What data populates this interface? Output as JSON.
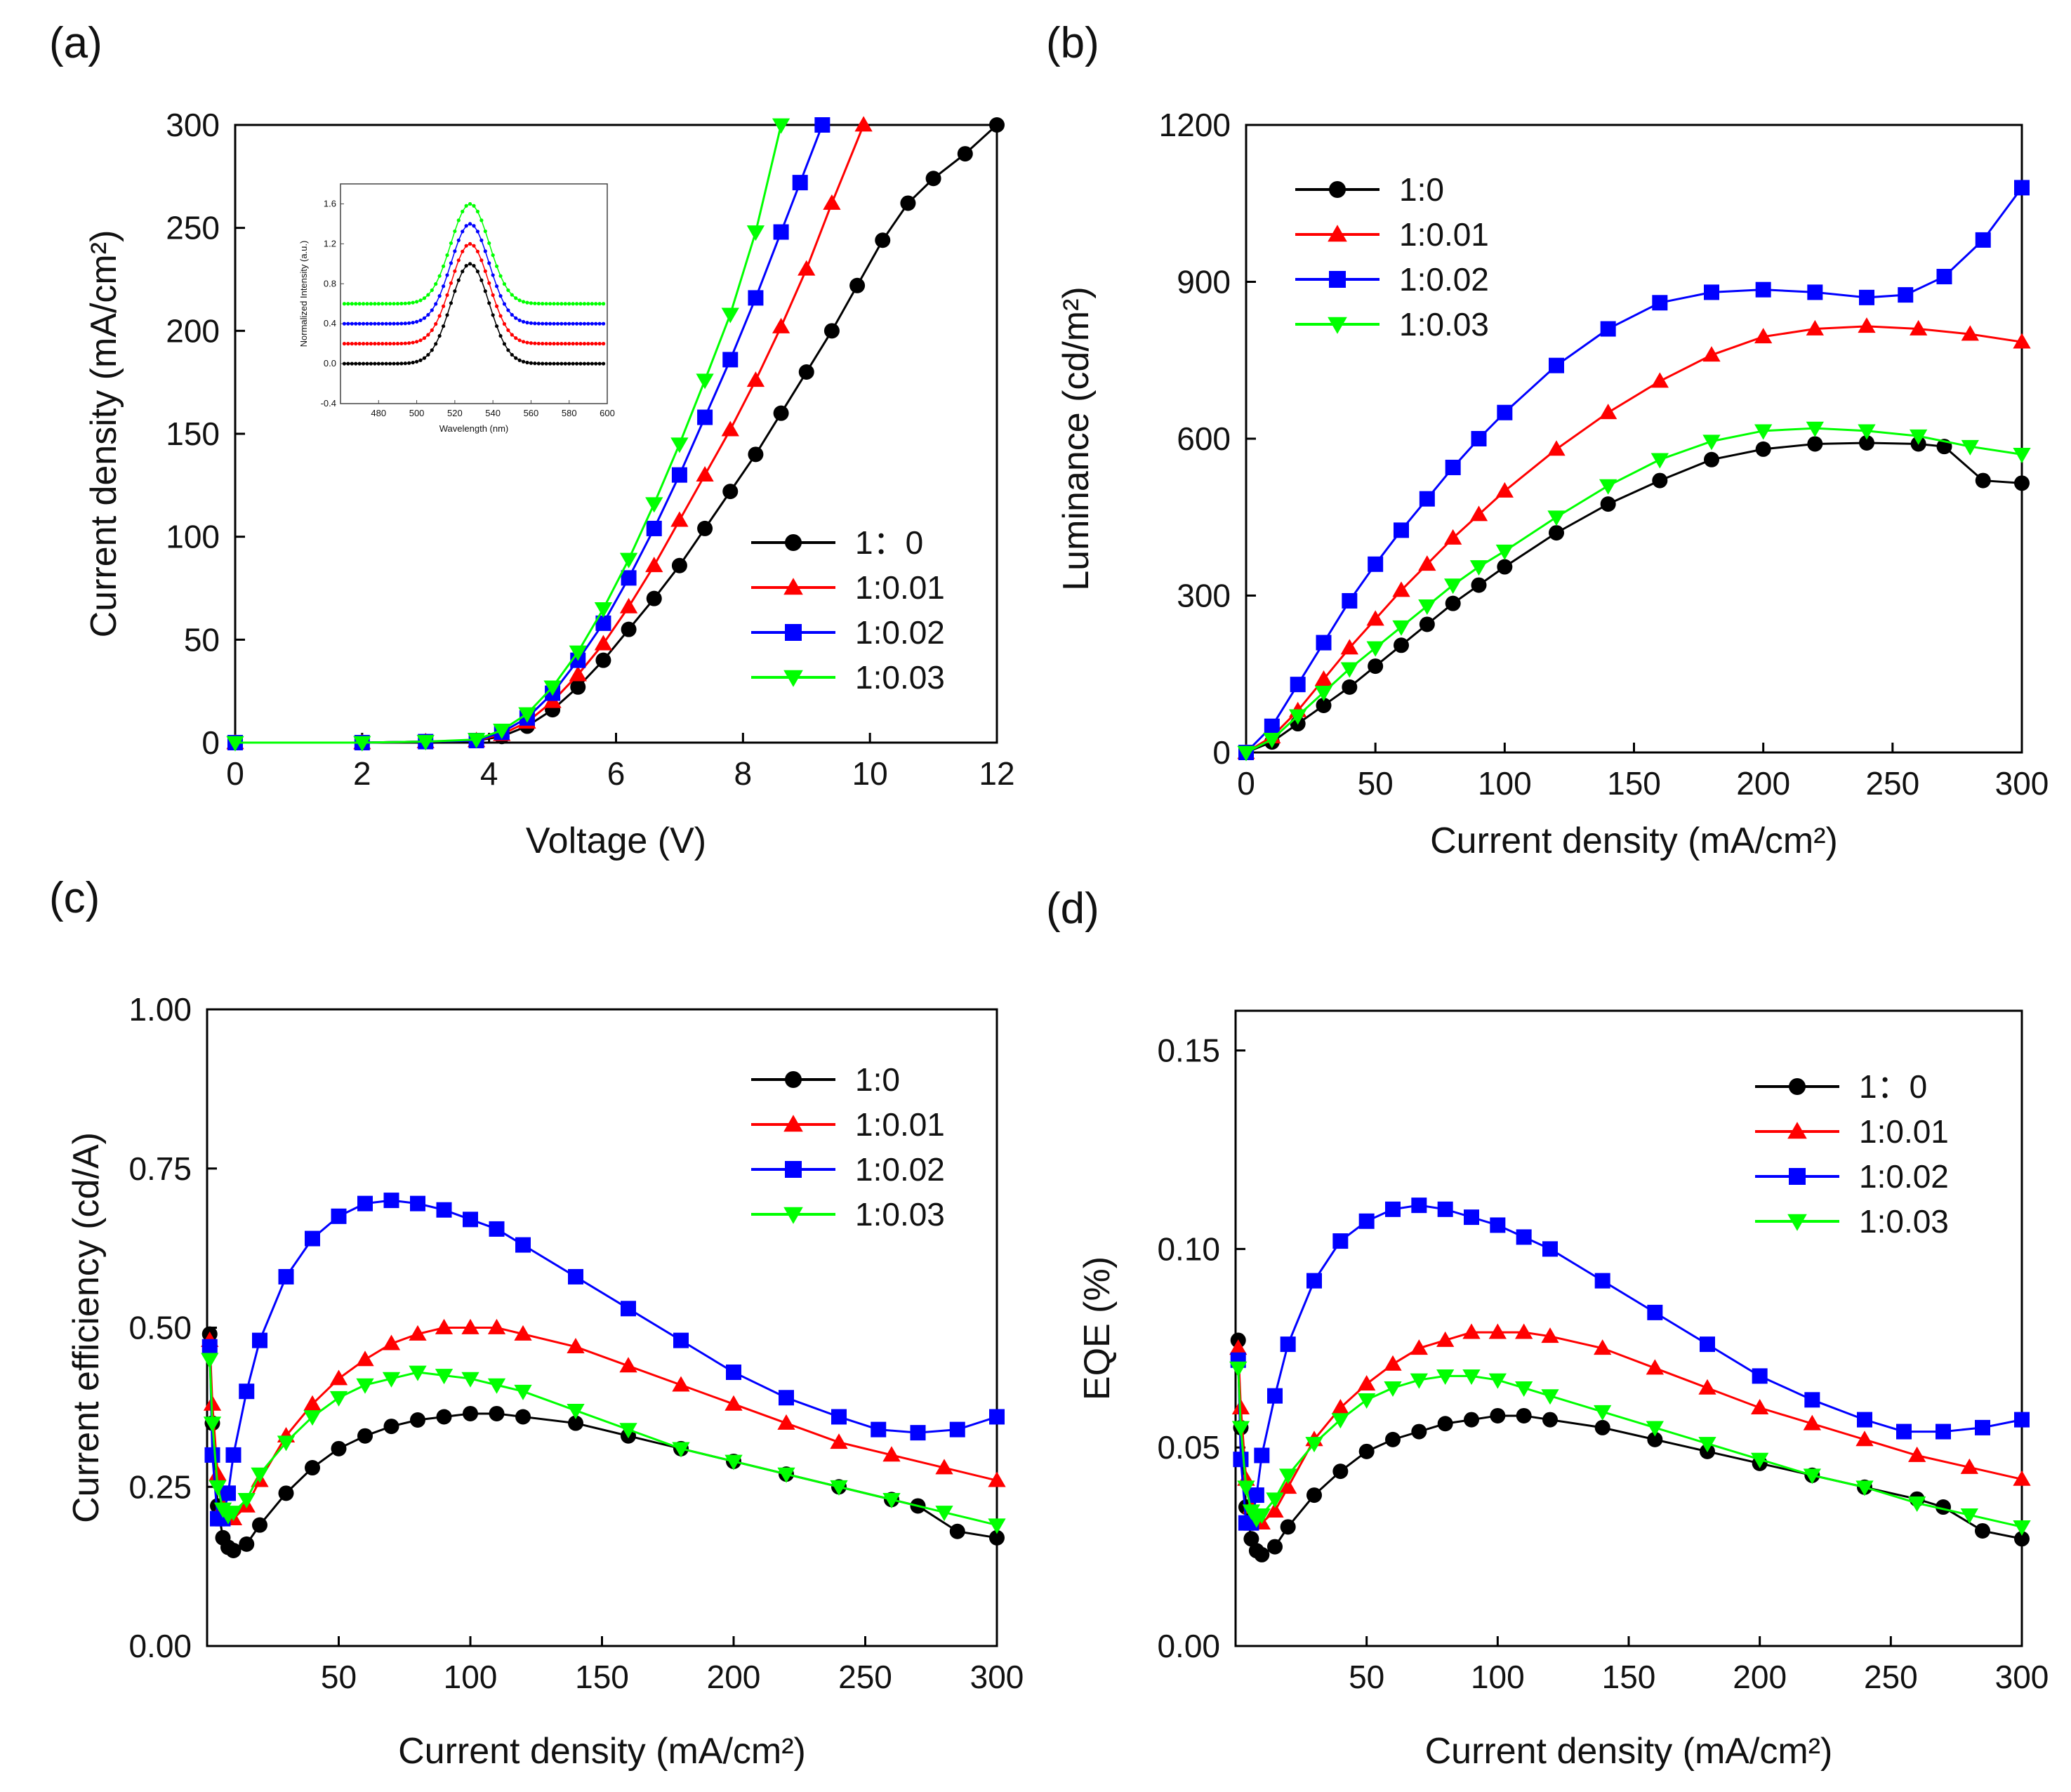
{
  "colors": {
    "1:0": "#000000",
    "1:0.01": "#ff0000",
    "1:0.02": "#0000ff",
    "1:0.03": "#00ff00"
  },
  "chart_data": [
    {
      "panel": "(a)",
      "type": "line",
      "xlabel": "Voltage (V)",
      "ylabel": "Current density (mA/cm²)",
      "xlim": [
        0,
        12
      ],
      "ylim": [
        0,
        300
      ],
      "xticks": [
        0,
        2,
        4,
        6,
        8,
        10,
        12
      ],
      "yticks": [
        0,
        50,
        100,
        150,
        200,
        250,
        300
      ],
      "legend": {
        "position": "center-right",
        "labels": [
          "1：0",
          "1:0.01",
          "1:0.02",
          "1:0.03"
        ]
      },
      "series": [
        {
          "name": "1：0",
          "color": "#000000",
          "marker": "circle",
          "x": [
            0,
            2,
            3,
            3.8,
            4.2,
            4.6,
            5.0,
            5.4,
            5.8,
            6.2,
            6.6,
            7.0,
            7.4,
            7.8,
            8.2,
            8.6,
            9.0,
            9.4,
            9.8,
            10.2,
            10.6,
            11.0,
            11.5,
            12.0
          ],
          "y": [
            0,
            0,
            0.5,
            1,
            3,
            8,
            16,
            27,
            40,
            55,
            70,
            86,
            104,
            122,
            140,
            160,
            180,
            200,
            222,
            244,
            262,
            274,
            286,
            300
          ]
        },
        {
          "name": "1:0.01",
          "color": "#ff0000",
          "marker": "triangle-up",
          "x": [
            0,
            2,
            3,
            3.8,
            4.2,
            4.6,
            5.0,
            5.4,
            5.8,
            6.2,
            6.6,
            7.0,
            7.4,
            7.8,
            8.2,
            8.6,
            9.0,
            9.4,
            9.9
          ],
          "y": [
            0,
            0,
            0.5,
            1,
            4,
            10,
            20,
            33,
            48,
            66,
            86,
            108,
            130,
            152,
            176,
            202,
            230,
            262,
            300
          ]
        },
        {
          "name": "1:0.02",
          "color": "#0000ff",
          "marker": "square",
          "x": [
            0,
            2,
            3,
            3.8,
            4.2,
            4.6,
            5.0,
            5.4,
            5.8,
            6.2,
            6.6,
            7.0,
            7.4,
            7.8,
            8.2,
            8.6,
            8.9,
            9.25
          ],
          "y": [
            0,
            0,
            0.5,
            1,
            5,
            12,
            24,
            40,
            58,
            80,
            104,
            130,
            158,
            186,
            216,
            248,
            272,
            300
          ]
        },
        {
          "name": "1:0.03",
          "color": "#00ff00",
          "marker": "triangle-down",
          "x": [
            0,
            2,
            3,
            3.8,
            4.2,
            4.6,
            5.0,
            5.4,
            5.8,
            6.2,
            6.6,
            7.0,
            7.4,
            7.8,
            8.2,
            8.6
          ],
          "y": [
            0,
            0,
            0.5,
            1.5,
            6,
            14,
            27,
            44,
            65,
            89,
            116,
            145,
            176,
            208,
            248,
            300
          ]
        }
      ],
      "inset": {
        "xlabel": "Wavelength (nm)",
        "ylabel": "Normalized Intensity (a.u.)",
        "xlim": [
          460,
          600
        ],
        "ylim": [
          -0.4,
          1.8
        ],
        "xticks": [
          480,
          500,
          520,
          540,
          560,
          580,
          600
        ],
        "yticks": [
          -0.4,
          0,
          0.4,
          0.8,
          1.2,
          1.6
        ],
        "ytick_labels": [
          "-0.4",
          "0.0",
          "0.4",
          "0.8",
          "1.2",
          "1.6"
        ],
        "series": [
          {
            "name": "1:0",
            "color": "#000000",
            "baseline": 0.0,
            "peak": 1.0,
            "center": 528,
            "width": 10
          },
          {
            "name": "1:0.01",
            "color": "#ff0000",
            "baseline": 0.2,
            "peak": 1.2,
            "center": 528,
            "width": 10
          },
          {
            "name": "1:0.02",
            "color": "#0000ff",
            "baseline": 0.4,
            "peak": 1.4,
            "center": 528,
            "width": 10
          },
          {
            "name": "1:0.03",
            "color": "#00ff00",
            "baseline": 0.6,
            "peak": 1.6,
            "center": 528,
            "width": 10
          }
        ]
      }
    },
    {
      "panel": "(b)",
      "type": "line",
      "xlabel": "Current density (mA/cm²)",
      "ylabel": "Luminance (cd/m²)",
      "xlim": [
        0,
        300
      ],
      "ylim": [
        0,
        1200
      ],
      "xticks": [
        0,
        50,
        100,
        150,
        200,
        250,
        300
      ],
      "yticks": [
        0,
        300,
        600,
        900,
        1200
      ],
      "legend": {
        "position": "top-left",
        "labels": [
          "1:0",
          "1:0.01",
          "1:0.02",
          "1:0.03"
        ]
      },
      "series": [
        {
          "name": "1:0",
          "color": "#000000",
          "marker": "circle",
          "x": [
            0,
            10,
            20,
            30,
            40,
            50,
            60,
            70,
            80,
            90,
            100,
            120,
            140,
            160,
            180,
            200,
            220,
            240,
            260,
            270,
            285,
            300
          ],
          "y": [
            0,
            20,
            55,
            90,
            125,
            165,
            205,
            245,
            285,
            320,
            355,
            420,
            475,
            520,
            560,
            580,
            590,
            592,
            590,
            585,
            520,
            515
          ]
        },
        {
          "name": "1:0.01",
          "color": "#ff0000",
          "marker": "triangle-up",
          "x": [
            0,
            10,
            20,
            30,
            40,
            50,
            60,
            70,
            80,
            90,
            100,
            120,
            140,
            160,
            180,
            200,
            220,
            240,
            260,
            280,
            300
          ],
          "y": [
            0,
            30,
            80,
            140,
            200,
            255,
            310,
            360,
            410,
            455,
            500,
            580,
            650,
            710,
            760,
            795,
            810,
            815,
            810,
            800,
            785
          ]
        },
        {
          "name": "1:0.02",
          "color": "#0000ff",
          "marker": "square",
          "x": [
            0,
            10,
            20,
            30,
            40,
            50,
            60,
            70,
            80,
            90,
            100,
            120,
            140,
            160,
            180,
            200,
            220,
            240,
            255,
            270,
            285,
            300
          ],
          "y": [
            0,
            50,
            130,
            210,
            290,
            360,
            425,
            485,
            545,
            600,
            650,
            740,
            810,
            860,
            880,
            885,
            880,
            870,
            875,
            910,
            980,
            1080
          ]
        },
        {
          "name": "1:0.03",
          "color": "#00ff00",
          "marker": "triangle-down",
          "x": [
            0,
            10,
            20,
            30,
            40,
            50,
            60,
            70,
            80,
            90,
            100,
            120,
            140,
            160,
            180,
            200,
            220,
            240,
            260,
            280,
            300
          ],
          "y": [
            0,
            25,
            70,
            115,
            160,
            200,
            240,
            280,
            320,
            355,
            385,
            450,
            510,
            560,
            595,
            615,
            620,
            615,
            605,
            585,
            570
          ]
        }
      ]
    },
    {
      "panel": "(c)",
      "type": "line",
      "xlabel": "Current density (mA/cm²)",
      "ylabel": "Current efficiency (cd/A)",
      "xlim": [
        0,
        300
      ],
      "ylim": [
        0,
        1.0
      ],
      "xticks": [
        50,
        100,
        150,
        200,
        250,
        300
      ],
      "yticks": [
        0,
        0.25,
        0.5,
        0.75,
        1.0
      ],
      "ytick_labels": [
        "0.00",
        "0.25",
        "0.50",
        "0.75",
        "1.00"
      ],
      "legend": {
        "position": "top-right",
        "labels": [
          "1:0",
          "1:0.01",
          "1:0.02",
          "1:0.03"
        ]
      },
      "series": [
        {
          "name": "1:0",
          "color": "#000000",
          "marker": "circle",
          "x": [
            1,
            2,
            4,
            6,
            8,
            10,
            15,
            20,
            30,
            40,
            50,
            60,
            70,
            80,
            90,
            100,
            110,
            120,
            140,
            160,
            180,
            200,
            220,
            240,
            260,
            270,
            285,
            300
          ],
          "y": [
            0.49,
            0.35,
            0.22,
            0.17,
            0.155,
            0.15,
            0.16,
            0.19,
            0.24,
            0.28,
            0.31,
            0.33,
            0.345,
            0.355,
            0.36,
            0.365,
            0.365,
            0.36,
            0.35,
            0.33,
            0.31,
            0.29,
            0.27,
            0.25,
            0.23,
            0.22,
            0.18,
            0.17
          ]
        },
        {
          "name": "1:0.01",
          "color": "#ff0000",
          "marker": "triangle-up",
          "x": [
            1,
            2,
            4,
            6,
            8,
            10,
            15,
            20,
            30,
            40,
            50,
            60,
            70,
            80,
            90,
            100,
            110,
            120,
            140,
            160,
            180,
            200,
            220,
            240,
            260,
            280,
            300
          ],
          "y": [
            0.48,
            0.38,
            0.27,
            0.22,
            0.205,
            0.2,
            0.22,
            0.26,
            0.33,
            0.38,
            0.42,
            0.45,
            0.475,
            0.49,
            0.5,
            0.5,
            0.5,
            0.49,
            0.47,
            0.44,
            0.41,
            0.38,
            0.35,
            0.32,
            0.3,
            0.28,
            0.26
          ]
        },
        {
          "name": "1:0.02",
          "color": "#0000ff",
          "marker": "square",
          "x": [
            1,
            2,
            4,
            6,
            8,
            10,
            15,
            20,
            30,
            40,
            50,
            60,
            70,
            80,
            90,
            100,
            110,
            120,
            140,
            160,
            180,
            200,
            220,
            240,
            255,
            270,
            285,
            300
          ],
          "y": [
            0.47,
            0.3,
            0.2,
            0.2,
            0.24,
            0.3,
            0.4,
            0.48,
            0.58,
            0.64,
            0.675,
            0.695,
            0.7,
            0.695,
            0.685,
            0.67,
            0.655,
            0.63,
            0.58,
            0.53,
            0.48,
            0.43,
            0.39,
            0.36,
            0.34,
            0.335,
            0.34,
            0.36
          ]
        },
        {
          "name": "1:0.03",
          "color": "#00ff00",
          "marker": "triangle-down",
          "x": [
            1,
            2,
            4,
            6,
            8,
            10,
            15,
            20,
            30,
            40,
            50,
            60,
            70,
            80,
            90,
            100,
            110,
            120,
            140,
            160,
            180,
            200,
            220,
            240,
            260,
            280,
            300
          ],
          "y": [
            0.45,
            0.35,
            0.25,
            0.215,
            0.205,
            0.21,
            0.23,
            0.27,
            0.32,
            0.36,
            0.39,
            0.41,
            0.42,
            0.43,
            0.425,
            0.42,
            0.41,
            0.4,
            0.37,
            0.34,
            0.31,
            0.29,
            0.27,
            0.25,
            0.23,
            0.21,
            0.19
          ]
        }
      ]
    },
    {
      "panel": "(d)",
      "type": "line",
      "xlabel": "Current density (mA/cm²)",
      "ylabel": "EQE (%)",
      "xlim": [
        0,
        300
      ],
      "ylim": [
        0,
        0.16
      ],
      "xticks": [
        50,
        100,
        150,
        200,
        250,
        300
      ],
      "yticks": [
        0,
        0.05,
        0.1,
        0.15
      ],
      "ytick_labels": [
        "0.00",
        "0.05",
        "0.10",
        "0.15"
      ],
      "legend": {
        "position": "top-right",
        "labels": [
          "1：0",
          "1:0.01",
          "1:0.02",
          "1:0.03"
        ]
      },
      "series": [
        {
          "name": "1：0",
          "color": "#000000",
          "marker": "circle",
          "x": [
            1,
            2,
            4,
            6,
            8,
            10,
            15,
            20,
            30,
            40,
            50,
            60,
            70,
            80,
            90,
            100,
            110,
            120,
            140,
            160,
            180,
            200,
            220,
            240,
            260,
            270,
            285,
            300
          ],
          "y": [
            0.077,
            0.055,
            0.035,
            0.027,
            0.024,
            0.023,
            0.025,
            0.03,
            0.038,
            0.044,
            0.049,
            0.052,
            0.054,
            0.056,
            0.057,
            0.058,
            0.058,
            0.057,
            0.055,
            0.052,
            0.049,
            0.046,
            0.043,
            0.04,
            0.037,
            0.035,
            0.029,
            0.027
          ]
        },
        {
          "name": "1:0.01",
          "color": "#ff0000",
          "marker": "triangle-up",
          "x": [
            1,
            2,
            4,
            6,
            8,
            10,
            15,
            20,
            30,
            40,
            50,
            60,
            70,
            80,
            90,
            100,
            110,
            120,
            140,
            160,
            180,
            200,
            220,
            240,
            260,
            280,
            300
          ],
          "y": [
            0.075,
            0.06,
            0.042,
            0.035,
            0.032,
            0.031,
            0.034,
            0.04,
            0.052,
            0.06,
            0.066,
            0.071,
            0.075,
            0.077,
            0.079,
            0.079,
            0.079,
            0.078,
            0.075,
            0.07,
            0.065,
            0.06,
            0.056,
            0.052,
            0.048,
            0.045,
            0.042
          ]
        },
        {
          "name": "1:0.02",
          "color": "#0000ff",
          "marker": "square",
          "x": [
            1,
            2,
            4,
            6,
            8,
            10,
            15,
            20,
            30,
            40,
            50,
            60,
            70,
            80,
            90,
            100,
            110,
            120,
            140,
            160,
            180,
            200,
            220,
            240,
            255,
            270,
            285,
            300
          ],
          "y": [
            0.072,
            0.047,
            0.031,
            0.031,
            0.038,
            0.048,
            0.063,
            0.076,
            0.092,
            0.102,
            0.107,
            0.11,
            0.111,
            0.11,
            0.108,
            0.106,
            0.103,
            0.1,
            0.092,
            0.084,
            0.076,
            0.068,
            0.062,
            0.057,
            0.054,
            0.054,
            0.055,
            0.057
          ]
        },
        {
          "name": "1:0.03",
          "color": "#00ff00",
          "marker": "triangle-down",
          "x": [
            1,
            2,
            4,
            6,
            8,
            10,
            15,
            20,
            30,
            40,
            50,
            60,
            70,
            80,
            90,
            100,
            110,
            120,
            140,
            160,
            180,
            200,
            220,
            240,
            260,
            280,
            300
          ],
          "y": [
            0.07,
            0.055,
            0.04,
            0.034,
            0.032,
            0.033,
            0.037,
            0.043,
            0.051,
            0.057,
            0.062,
            0.065,
            0.067,
            0.068,
            0.068,
            0.067,
            0.065,
            0.063,
            0.059,
            0.055,
            0.051,
            0.047,
            0.043,
            0.04,
            0.036,
            0.033,
            0.03
          ]
        }
      ]
    }
  ]
}
